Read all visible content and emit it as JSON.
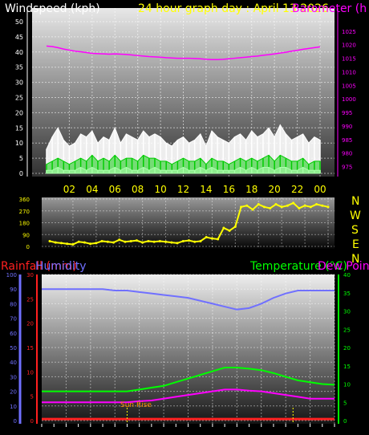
{
  "colors": {
    "wind_title": "#ffffff",
    "date_title": "#ffff00",
    "barometer": "#ff00ff",
    "direction": "#ffff00",
    "rainfall": "#ff2020",
    "humidity": "#7070ff",
    "temperature": "#00ff00",
    "dewpoint": "#ff00ff",
    "wind_gust": "#ffffff",
    "wind_avg": "#00cc00",
    "wind_min": "#aaffaa"
  },
  "titles": {
    "windspeed": "Windspeed (kph)",
    "date": "24 hour graph day : April 13 2026",
    "barometer": "Barometer (h",
    "rainfall": "Rainfall (mm)",
    "humidity": "Humidity",
    "temperature": "Temperature (°C)",
    "dewpoint": "Dew Point",
    "sunrise": "Sun Rise"
  },
  "compass": [
    "N",
    "W",
    "S",
    "E",
    "N"
  ],
  "chart_data": [
    {
      "type": "line",
      "name": "wind",
      "x": [
        0,
        0.5,
        1,
        1.5,
        2,
        2.5,
        3,
        3.5,
        4,
        4.5,
        5,
        5.5,
        6,
        6.5,
        7,
        7.5,
        8,
        8.5,
        9,
        9.5,
        10,
        10.5,
        11,
        11.5,
        12,
        12.5,
        13,
        13.5,
        14,
        14.5,
        15,
        15.5,
        16,
        16.5,
        17,
        17.5,
        18,
        18.5,
        19,
        19.5,
        20,
        20.5,
        21,
        21.5,
        22,
        22.5,
        23,
        23.5,
        24
      ],
      "x_ticks": [
        "02",
        "04",
        "06",
        "08",
        "10",
        "12",
        "14",
        "16",
        "18",
        "20",
        "22",
        "00"
      ],
      "left_axis": {
        "label": "Windspeed (kph)",
        "ticks": [
          0,
          5,
          10,
          15,
          20,
          25,
          30,
          35,
          40,
          45,
          50
        ],
        "ylim": [
          0,
          50
        ]
      },
      "right_axis": {
        "label": "Barometer (h",
        "ticks": [
          975,
          980,
          985,
          990,
          995,
          1000,
          1005,
          1010,
          1015,
          1020,
          1025
        ],
        "ylim": [
          972.5,
          1028.5
        ]
      },
      "series": [
        {
          "name": "gust",
          "color": "#ffffff",
          "values": [
            8,
            12,
            15,
            11,
            9,
            10,
            13,
            12,
            14,
            10,
            12,
            11,
            15,
            10,
            13,
            12,
            11,
            14,
            12,
            13,
            12,
            10,
            9,
            11,
            12,
            10,
            11,
            13,
            9,
            14,
            12,
            11,
            10,
            12,
            13,
            11,
            14,
            12,
            13,
            15,
            12,
            16,
            13,
            11,
            12,
            13,
            10,
            12,
            11
          ]
        },
        {
          "name": "average",
          "color": "#00cc00",
          "values": [
            3,
            4,
            5,
            4,
            3,
            4,
            5,
            4,
            6,
            4,
            5,
            4,
            6,
            4,
            5,
            5,
            4,
            6,
            5,
            5,
            4,
            4,
            3,
            4,
            5,
            4,
            4,
            5,
            3,
            5,
            4,
            4,
            3,
            4,
            5,
            4,
            5,
            4,
            5,
            6,
            4,
            6,
            5,
            4,
            4,
            5,
            3,
            4,
            4
          ]
        },
        {
          "name": "minimum",
          "color": "#aaffaa",
          "values": [
            1,
            1,
            2,
            1,
            1,
            1,
            2,
            1,
            2,
            1,
            1,
            1,
            2,
            1,
            2,
            1,
            1,
            2,
            1,
            2,
            1,
            1,
            1,
            1,
            2,
            1,
            1,
            2,
            1,
            2,
            1,
            1,
            1,
            1,
            2,
            1,
            2,
            1,
            2,
            2,
            1,
            2,
            2,
            1,
            1,
            2,
            1,
            1,
            1
          ]
        },
        {
          "name": "barometer",
          "axis": "right",
          "color": "#ff00ff",
          "values": [
            1019.5,
            1019.3,
            1018.9,
            1018.4,
            1018.0,
            1017.6,
            1017.4,
            1017.1,
            1016.8,
            1016.7,
            1016.6,
            1016.5,
            1016.6,
            1016.5,
            1016.4,
            1016.2,
            1016.0,
            1015.8,
            1015.6,
            1015.5,
            1015.4,
            1015.2,
            1015.1,
            1015.0,
            1015.0,
            1015.0,
            1014.9,
            1014.8,
            1014.6,
            1014.5,
            1014.5,
            1014.6,
            1014.8,
            1015.0,
            1015.2,
            1015.4,
            1015.6,
            1015.8,
            1016.1,
            1016.3,
            1016.6,
            1016.9,
            1017.2,
            1017.6,
            1017.9,
            1018.3,
            1018.6,
            1018.9,
            1019.2
          ]
        }
      ]
    },
    {
      "type": "line",
      "name": "wind_direction",
      "ylim": [
        0,
        360
      ],
      "ticks": [
        0,
        90,
        180,
        270,
        360
      ],
      "tick_labels": [
        "0",
        "90",
        "180",
        "270",
        "360"
      ],
      "series": [
        {
          "name": "direction",
          "color": "#ffff00",
          "x": [
            0,
            0.5,
            1,
            1.5,
            2,
            2.5,
            3,
            3.5,
            4,
            4.5,
            5,
            5.5,
            6,
            6.5,
            7,
            7.5,
            8,
            8.5,
            9,
            9.5,
            10,
            10.5,
            11,
            11.5,
            12,
            12.5,
            13,
            13.5,
            14,
            14.5,
            15,
            15.5,
            16,
            16.5,
            17,
            17.5,
            18,
            18.5,
            19,
            19.5,
            20,
            20.5,
            21,
            21.5,
            22,
            22.5,
            23,
            23.5,
            24
          ],
          "values": [
            40,
            30,
            25,
            20,
            15,
            35,
            30,
            20,
            25,
            40,
            35,
            30,
            50,
            35,
            40,
            45,
            30,
            40,
            35,
            40,
            35,
            30,
            25,
            40,
            45,
            35,
            40,
            70,
            60,
            55,
            140,
            120,
            150,
            300,
            310,
            280,
            320,
            300,
            290,
            320,
            300,
            310,
            330,
            290,
            310,
            300,
            320,
            310,
            300
          ]
        }
      ]
    },
    {
      "type": "line",
      "name": "rain_humidity_temperature",
      "x": [
        0,
        1,
        2,
        3,
        4,
        5,
        6,
        7,
        8,
        9,
        10,
        11,
        12,
        13,
        14,
        15,
        16,
        17,
        18,
        19,
        20,
        21,
        22,
        23,
        24
      ],
      "left_outer_axis": {
        "label": "Humidity",
        "ticks": [
          0,
          10,
          20,
          30,
          40,
          50,
          60,
          70,
          80,
          90,
          100
        ],
        "ylim": [
          0,
          100
        ]
      },
      "left_inner_axis": {
        "label": "Rainfall (mm)",
        "ticks": [
          0,
          5,
          10,
          15,
          20,
          25,
          30
        ],
        "ylim": [
          0,
          30
        ]
      },
      "right_axis": {
        "label": "Temperature (°C)",
        "ticks": [
          0,
          5,
          10,
          15,
          20,
          25,
          30,
          35,
          40
        ],
        "ylim": [
          0,
          40
        ]
      },
      "series": [
        {
          "name": "Humidity",
          "color": "#7070ff",
          "axis": "left_outer",
          "values": [
            90,
            90,
            90,
            90,
            90,
            90,
            89,
            89,
            88,
            87,
            86,
            85,
            84,
            82,
            80,
            78,
            76,
            77,
            80,
            84,
            87,
            89,
            89,
            89,
            89
          ]
        },
        {
          "name": "Temperature",
          "color": "#00ff00",
          "axis": "right",
          "values": [
            8,
            8,
            8,
            8,
            8,
            8,
            8,
            8,
            8.5,
            9,
            9.5,
            10.5,
            11.5,
            12.5,
            13.5,
            14.5,
            14.5,
            14.2,
            13.8,
            13,
            12,
            11,
            10.5,
            10,
            9.8
          ]
        },
        {
          "name": "Dew Point",
          "color": "#ff00ff",
          "axis": "right",
          "values": [
            5,
            5,
            5,
            5,
            5,
            5,
            5,
            5,
            5.3,
            5.5,
            6,
            6.5,
            7,
            7.5,
            8,
            8.5,
            8.5,
            8.2,
            8,
            7.5,
            7,
            6.5,
            6,
            6,
            6
          ]
        },
        {
          "name": "Rainfall",
          "color": "#ff2020",
          "axis": "left_inner",
          "values": [
            0.3,
            0.3,
            0.3,
            0.3,
            0.3,
            0.3,
            0.3,
            0.3,
            0.3,
            0.3,
            0.3,
            0.3,
            0.3,
            0.3,
            0.3,
            0.3,
            0.3,
            0.3,
            0.3,
            0.3,
            0.3,
            0.3,
            0.3,
            0.3,
            0.3
          ]
        }
      ]
    }
  ]
}
